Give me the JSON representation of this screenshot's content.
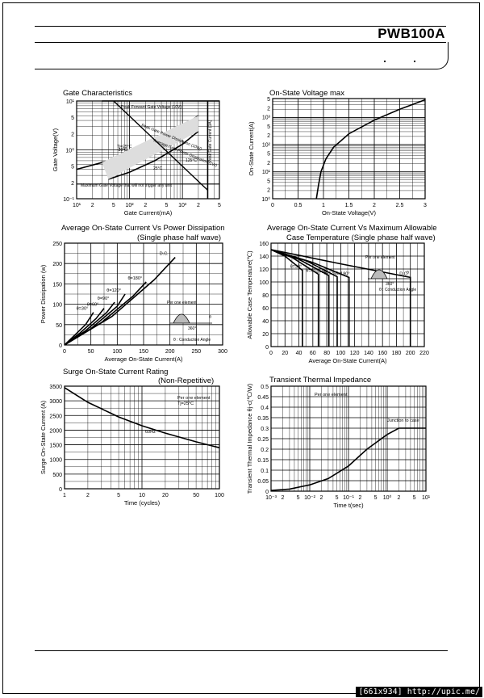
{
  "header": {
    "title": "PWB100A"
  },
  "footer": {
    "watermark": "[661x934] http://upic.me/"
  },
  "chart_data": [
    {
      "type": "line",
      "title": "Gate Characteristics",
      "xlabel": "Gate Current(mA)",
      "ylabel": "Gate Voltage(V)",
      "xscale": "log",
      "yscale": "log",
      "xlim": [
        10,
        5000
      ],
      "ylim": [
        0.1,
        10
      ],
      "x_ticks": [
        "10¹",
        "2",
        "5",
        "10²",
        "2",
        "5",
        "10³",
        "2",
        "5"
      ],
      "y_ticks": [
        "10¹",
        "5",
        "2",
        "10⁰",
        "5",
        "2",
        "10⁻¹"
      ],
      "annotations": [
        "Peak Forward Gate Voltage (10V)",
        "Peak Gate Power Dissipation (10W)",
        "Average Gate Power Dissipation (1W)",
        "Peak Gate Current (3A)",
        "Maximum Gate Voltage that will not trigger any unit",
        "Tj=25°C",
        "-30°C",
        "25°C",
        "125°C"
      ],
      "series": [
        {
          "points": [
            [
              10,
              0.4
            ],
            [
              30,
              0.55
            ],
            [
              100,
              0.8
            ],
            [
              300,
              1.4
            ],
            [
              1000,
              3
            ],
            [
              2000,
              5
            ]
          ]
        },
        {
          "points": [
            [
              40,
              0.25
            ],
            [
              100,
              0.35
            ],
            [
              300,
              0.6
            ],
            [
              1000,
              1.3
            ],
            [
              2000,
              2.4
            ]
          ]
        }
      ],
      "grid": true
    },
    {
      "type": "line",
      "title": "On-State Voltage max",
      "xlabel": "On-State Voltage(V)",
      "ylabel": "On-State Current(A)",
      "yscale": "log",
      "xlim": [
        0,
        3
      ],
      "ylim": [
        1,
        5000
      ],
      "x_ticks": [
        "0",
        "0.5",
        "1",
        "1.5",
        "2",
        "2.5",
        "3"
      ],
      "y_ticks": [
        "5",
        "2",
        "10³",
        "5",
        "2",
        "10²",
        "5",
        "2",
        "10¹",
        "5",
        "2",
        "10⁰"
      ],
      "series": [
        {
          "points": [
            [
              0.86,
              1
            ],
            [
              0.9,
              3
            ],
            [
              0.95,
              10
            ],
            [
              1.05,
              30
            ],
            [
              1.2,
              80
            ],
            [
              1.5,
              250
            ],
            [
              2.0,
              800
            ],
            [
              2.5,
              2000
            ],
            [
              3.0,
              4500
            ]
          ]
        }
      ],
      "grid": true
    },
    {
      "type": "line",
      "title": "Average On-State Current Vs Power Dissipation",
      "subtitle": "(Single phase half wave)",
      "xlabel": "Average On-State Current(A)",
      "ylabel": "Power Dissipation (w)",
      "xlim": [
        0,
        300
      ],
      "ylim": [
        0,
        250
      ],
      "x_ticks": [
        "0",
        "50",
        "100",
        "150",
        "200",
        "250",
        "300"
      ],
      "y_ticks": [
        "0",
        "50",
        "100",
        "150",
        "200",
        "250"
      ],
      "legend": [
        "Per one element",
        "θ : Conduction Angle",
        "360°",
        "θ"
      ],
      "series": [
        {
          "name": "θ=30°",
          "points": [
            [
              0,
              0
            ],
            [
              20,
              25
            ],
            [
              40,
              50
            ],
            [
              55,
              80
            ]
          ]
        },
        {
          "name": "θ=60°",
          "points": [
            [
              0,
              0
            ],
            [
              30,
              30
            ],
            [
              60,
              65
            ],
            [
              75,
              90
            ]
          ]
        },
        {
          "name": "θ=90°",
          "points": [
            [
              0,
              0
            ],
            [
              40,
              35
            ],
            [
              80,
              80
            ],
            [
              95,
              105
            ]
          ]
        },
        {
          "name": "θ=120°",
          "points": [
            [
              0,
              0
            ],
            [
              50,
              40
            ],
            [
              100,
              95
            ],
            [
              115,
              125
            ]
          ]
        },
        {
          "name": "θ=180°",
          "points": [
            [
              0,
              0
            ],
            [
              70,
              55
            ],
            [
              130,
              120
            ],
            [
              155,
              155
            ]
          ]
        },
        {
          "name": "D.C.",
          "points": [
            [
              0,
              0
            ],
            [
              90,
              70
            ],
            [
              170,
              160
            ],
            [
              210,
              215
            ]
          ]
        }
      ],
      "grid": true
    },
    {
      "type": "line",
      "title": "Average On-State Current Vs Maximum Allowable",
      "subtitle": "Case Temperature (Single phase half wave)",
      "xlabel": "Average On-State Current(A)",
      "ylabel": "Allowable Case Temperature(℃)",
      "xlim": [
        0,
        220
      ],
      "ylim": [
        0,
        160
      ],
      "x_ticks": [
        "0",
        "20",
        "40",
        "60",
        "80",
        "100",
        "120",
        "140",
        "160",
        "180",
        "200",
        "220"
      ],
      "y_ticks": [
        "0",
        "20",
        "40",
        "60",
        "80",
        "100",
        "120",
        "140",
        "160"
      ],
      "legend": [
        "Per one element",
        "θ : Conduction Angle",
        "360°",
        "θ"
      ],
      "series": [
        {
          "name": "θ=30°",
          "points": [
            [
              0,
              150
            ],
            [
              20,
              140
            ],
            [
              45,
              118
            ],
            [
              45,
              0
            ]
          ]
        },
        {
          "name": "θ=60°",
          "points": [
            [
              0,
              150
            ],
            [
              30,
              138
            ],
            [
              68,
              112
            ],
            [
              68,
              0
            ]
          ]
        },
        {
          "name": "θ=90°",
          "points": [
            [
              0,
              150
            ],
            [
              40,
              135
            ],
            [
              83,
              110
            ],
            [
              83,
              0
            ]
          ]
        },
        {
          "name": "θ=120°",
          "points": [
            [
              0,
              150
            ],
            [
              50,
              133
            ],
            [
              95,
              108
            ],
            [
              95,
              0
            ]
          ]
        },
        {
          "name": "θ=180°",
          "points": [
            [
              0,
              150
            ],
            [
              60,
              130
            ],
            [
              112,
              107
            ],
            [
              112,
              0
            ]
          ]
        },
        {
          "name": "D.C.",
          "points": [
            [
              0,
              150
            ],
            [
              100,
              128
            ],
            [
              200,
              107
            ],
            [
              200,
              0
            ]
          ]
        }
      ],
      "grid": true
    },
    {
      "type": "line",
      "title": "Surge On-State Current Rating",
      "subtitle": "(Non-Repetitive)",
      "xlabel": "Time (cycles)",
      "ylabel": "Surge On-State Current (A)",
      "xscale": "log",
      "xlim": [
        1,
        100
      ],
      "ylim": [
        0,
        3500
      ],
      "x_ticks": [
        "1",
        "2",
        "5",
        "10",
        "20",
        "50",
        "100"
      ],
      "y_ticks": [
        "0",
        "500",
        "1000",
        "1500",
        "2000",
        "2500",
        "3000",
        "3500"
      ],
      "annotations": [
        "Per one element",
        "Tj=25°C",
        "60Hz"
      ],
      "series": [
        {
          "points": [
            [
              1,
              3450
            ],
            [
              2,
              2950
            ],
            [
              5,
              2450
            ],
            [
              10,
              2150
            ],
            [
              20,
              1900
            ],
            [
              50,
              1600
            ],
            [
              100,
              1400
            ]
          ]
        }
      ],
      "grid": true
    },
    {
      "type": "line",
      "title": "Transient Thermal Impedance",
      "xlabel": "Time  t(sec)",
      "ylabel": "Transient Thermal Impedance θj-c(℃/W)",
      "xscale": "log",
      "xlim": [
        0.001,
        10
      ],
      "ylim": [
        0,
        0.5
      ],
      "x_ticks": [
        "10⁻³",
        "2",
        "5",
        "10⁻²",
        "2",
        "5",
        "10⁻¹",
        "2",
        "5",
        "10⁰",
        "2",
        "5",
        "10¹"
      ],
      "y_ticks": [
        "0",
        "0.05",
        "0.1",
        "0.15",
        "0.2",
        "0.25",
        "0.3",
        "0.35",
        "0.4",
        "0.45",
        "0.5"
      ],
      "annotations": [
        "Per one element",
        "Junction to case"
      ],
      "series": [
        {
          "points": [
            [
              0.001,
              0.004
            ],
            [
              0.003,
              0.01
            ],
            [
              0.01,
              0.03
            ],
            [
              0.03,
              0.06
            ],
            [
              0.1,
              0.12
            ],
            [
              0.3,
              0.2
            ],
            [
              1,
              0.27
            ],
            [
              2,
              0.3
            ],
            [
              10,
              0.3
            ]
          ]
        }
      ],
      "grid": true
    }
  ]
}
